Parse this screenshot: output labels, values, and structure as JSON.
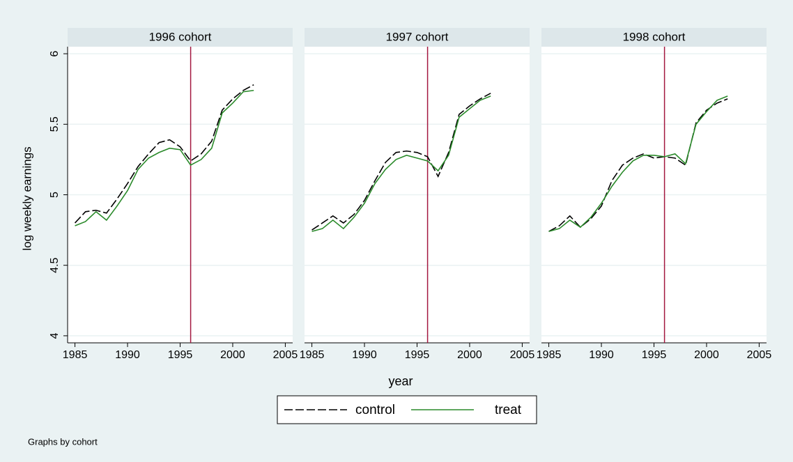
{
  "shared": {
    "ylabel": "log weekly earnings",
    "xlabel": "year",
    "note": "Graphs by cohort"
  },
  "chart_data": [
    {
      "type": "line",
      "title": "1996 cohort",
      "x": [
        1985,
        1986,
        1987,
        1988,
        1989,
        1990,
        1991,
        1992,
        1993,
        1994,
        1995,
        1996,
        1997,
        1998,
        1999,
        2000,
        2001,
        2002
      ],
      "series": [
        {
          "name": "control",
          "color": "#000000",
          "dashed": true,
          "values": [
            4.8,
            4.88,
            4.89,
            4.87,
            4.97,
            5.08,
            5.2,
            5.29,
            5.37,
            5.39,
            5.34,
            5.24,
            5.29,
            5.38,
            5.6,
            5.68,
            5.74,
            5.78
          ]
        },
        {
          "name": "treat",
          "color": "#2a8a2a",
          "dashed": false,
          "values": [
            4.78,
            4.81,
            4.88,
            4.82,
            4.92,
            5.03,
            5.18,
            5.26,
            5.3,
            5.33,
            5.32,
            5.21,
            5.25,
            5.33,
            5.58,
            5.65,
            5.73,
            5.74
          ]
        }
      ],
      "xlim": [
        1984.3,
        2005.7
      ],
      "xticks": [
        1985,
        1990,
        1995,
        2000,
        2005
      ],
      "ylim": [
        3.95,
        6.05
      ],
      "yticks": [
        4,
        4.5,
        5,
        5.5,
        6
      ],
      "grid": true,
      "xline": {
        "value": 1996,
        "color": "#a3173f"
      }
    },
    {
      "type": "line",
      "title": "1997 cohort",
      "x": [
        1985,
        1986,
        1987,
        1988,
        1989,
        1990,
        1991,
        1992,
        1993,
        1994,
        1995,
        1996,
        1997,
        1998,
        1999,
        2000,
        2001,
        2002
      ],
      "series": [
        {
          "name": "control",
          "color": "#000000",
          "dashed": true,
          "values": [
            4.75,
            4.8,
            4.85,
            4.8,
            4.86,
            4.96,
            5.1,
            5.23,
            5.3,
            5.31,
            5.3,
            5.27,
            5.13,
            5.3,
            5.57,
            5.63,
            5.68,
            5.72
          ]
        },
        {
          "name": "treat",
          "color": "#2a8a2a",
          "dashed": false,
          "values": [
            4.74,
            4.76,
            4.82,
            4.76,
            4.84,
            4.94,
            5.08,
            5.18,
            5.25,
            5.28,
            5.26,
            5.24,
            5.17,
            5.28,
            5.55,
            5.61,
            5.67,
            5.7
          ]
        }
      ],
      "xlim": [
        1984.3,
        2005.7
      ],
      "xticks": [
        1985,
        1990,
        1995,
        2000,
        2005
      ],
      "ylim": [
        3.95,
        6.05
      ],
      "yticks": [
        4,
        4.5,
        5,
        5.5,
        6
      ],
      "grid": true,
      "xline": {
        "value": 1996,
        "color": "#a3173f"
      }
    },
    {
      "type": "line",
      "title": "1998 cohort",
      "x": [
        1985,
        1986,
        1987,
        1988,
        1989,
        1990,
        1991,
        1992,
        1993,
        1994,
        1995,
        1996,
        1997,
        1998,
        1999,
        2000,
        2001,
        2002
      ],
      "series": [
        {
          "name": "control",
          "color": "#000000",
          "dashed": true,
          "values": [
            4.74,
            4.78,
            4.85,
            4.77,
            4.83,
            4.92,
            5.1,
            5.21,
            5.26,
            5.29,
            5.26,
            5.27,
            5.26,
            5.21,
            5.51,
            5.6,
            5.65,
            5.68
          ]
        },
        {
          "name": "treat",
          "color": "#2a8a2a",
          "dashed": false,
          "values": [
            4.74,
            4.76,
            4.82,
            4.77,
            4.84,
            4.94,
            5.06,
            5.16,
            5.24,
            5.28,
            5.28,
            5.27,
            5.29,
            5.22,
            5.5,
            5.59,
            5.67,
            5.7
          ]
        }
      ],
      "xlim": [
        1984.3,
        2005.7
      ],
      "xticks": [
        1985,
        1990,
        1995,
        2000,
        2005
      ],
      "ylim": [
        3.95,
        6.05
      ],
      "yticks": [
        4,
        4.5,
        5,
        5.5,
        6
      ],
      "grid": true,
      "xline": {
        "value": 1996,
        "color": "#a3173f"
      }
    }
  ]
}
